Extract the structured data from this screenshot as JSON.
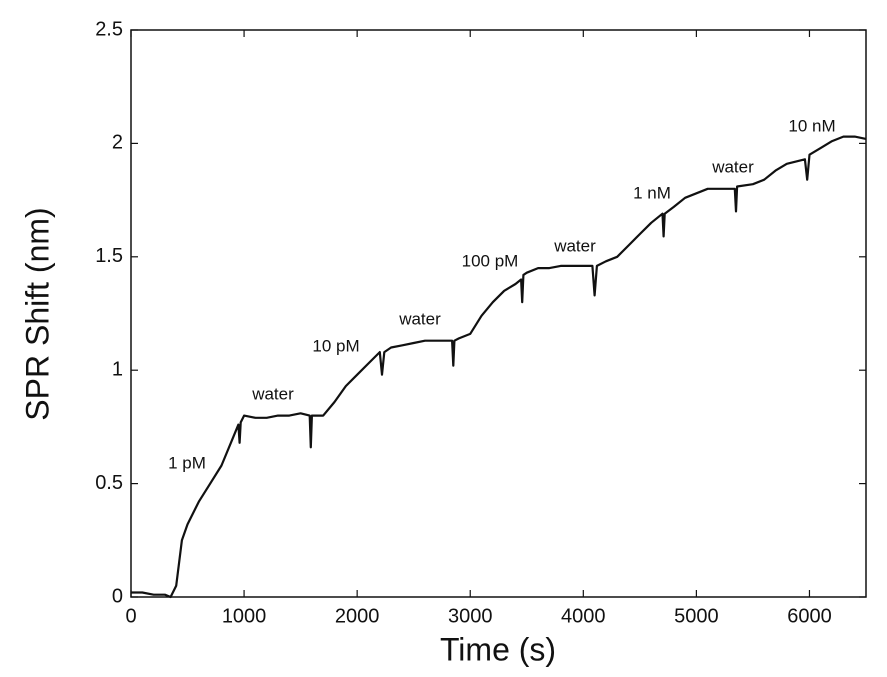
{
  "chart_data": {
    "type": "line",
    "xlabel": "Time (s)",
    "ylabel": "SPR Shift (nm)",
    "xlim": [
      0,
      6500
    ],
    "ylim": [
      0,
      2.5
    ],
    "xticks": [
      0,
      1000,
      2000,
      3000,
      4000,
      5000,
      6000
    ],
    "yticks": [
      0,
      0.5,
      1,
      1.5,
      2,
      2.5
    ],
    "color": "#111111",
    "annotations": [
      "1 pM",
      "water",
      "10 pM",
      "water",
      "100 pM",
      "water",
      "1 nM",
      "water",
      "10 nM"
    ],
    "x": [
      0,
      100,
      200,
      300,
      350,
      400,
      450,
      500,
      600,
      700,
      800,
      900,
      950,
      960,
      970,
      1000,
      1100,
      1200,
      1300,
      1400,
      1500,
      1580,
      1590,
      1600,
      1700,
      1800,
      1900,
      2000,
      2100,
      2200,
      2220,
      2240,
      2300,
      2400,
      2500,
      2600,
      2700,
      2840,
      2850,
      2860,
      2900,
      3000,
      3100,
      3200,
      3300,
      3400,
      3450,
      3460,
      3470,
      3500,
      3600,
      3700,
      3800,
      3900,
      4000,
      4080,
      4100,
      4120,
      4200,
      4300,
      4400,
      4500,
      4600,
      4700,
      4710,
      4720,
      4800,
      4900,
      5000,
      5100,
      5200,
      5340,
      5350,
      5360,
      5500,
      5600,
      5700,
      5800,
      5960,
      5980,
      6000,
      6100,
      6200,
      6300,
      6400,
      6500
    ],
    "values": [
      0.02,
      0.02,
      0.01,
      0.01,
      0.0,
      0.05,
      0.25,
      0.32,
      0.42,
      0.5,
      0.58,
      0.7,
      0.76,
      0.68,
      0.77,
      0.8,
      0.79,
      0.79,
      0.8,
      0.8,
      0.81,
      0.8,
      0.66,
      0.8,
      0.8,
      0.86,
      0.93,
      0.98,
      1.03,
      1.08,
      0.98,
      1.08,
      1.1,
      1.11,
      1.12,
      1.13,
      1.13,
      1.13,
      1.02,
      1.13,
      1.14,
      1.16,
      1.24,
      1.3,
      1.35,
      1.38,
      1.4,
      1.3,
      1.42,
      1.43,
      1.45,
      1.45,
      1.46,
      1.46,
      1.46,
      1.46,
      1.33,
      1.46,
      1.48,
      1.5,
      1.55,
      1.6,
      1.65,
      1.69,
      1.59,
      1.69,
      1.72,
      1.76,
      1.78,
      1.8,
      1.8,
      1.8,
      1.7,
      1.81,
      1.82,
      1.84,
      1.88,
      1.91,
      1.93,
      1.84,
      1.95,
      1.98,
      2.01,
      2.03,
      2.03,
      2.02
    ]
  }
}
